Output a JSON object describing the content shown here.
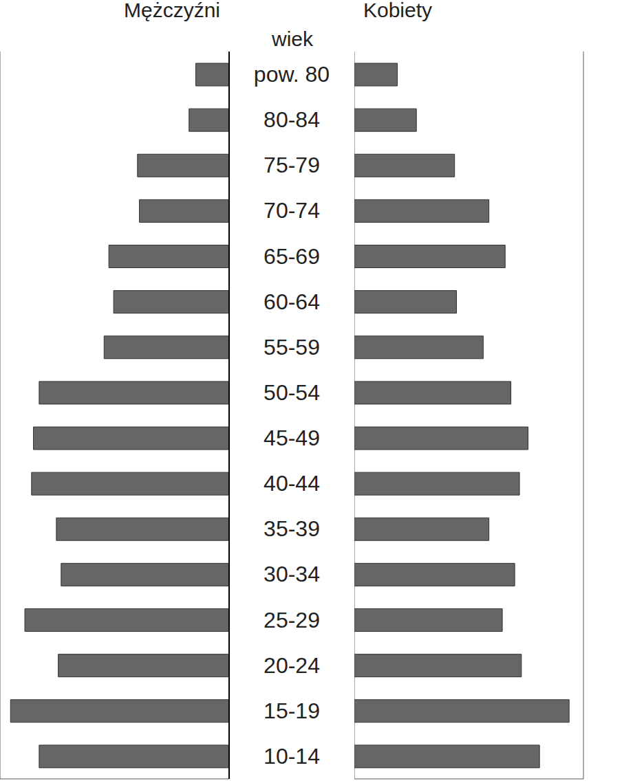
{
  "chart_data": {
    "type": "bar",
    "orientation": "horizontal",
    "y_label": "wiek",
    "categories": [
      "pow. 80",
      "80-84",
      "75-79",
      "70-74",
      "65-69",
      "60-64",
      "55-59",
      "50-54",
      "45-49",
      "40-44",
      "35-39",
      "30-34",
      "25-29",
      "20-24",
      "15-19",
      "10-14"
    ],
    "series": [
      {
        "name": "Mężczyźni",
        "color": "#666666",
        "values": [
          0.35,
          0.42,
          0.96,
          0.94,
          1.26,
          1.21,
          1.31,
          1.99,
          2.05,
          2.07,
          1.81,
          1.76,
          2.14,
          1.79,
          2.29,
          1.99
        ]
      },
      {
        "name": "Kobiety",
        "color": "#666666",
        "values": [
          0.45,
          0.65,
          1.05,
          1.41,
          1.58,
          1.07,
          1.35,
          1.64,
          1.82,
          1.73,
          1.41,
          1.68,
          1.55,
          1.75,
          2.25,
          1.94
        ]
      }
    ],
    "xlim": [
      0,
      2.4
    ],
    "xticks": [
      0,
      1,
      2
    ],
    "grid": true,
    "tick_labels": "y"
  }
}
